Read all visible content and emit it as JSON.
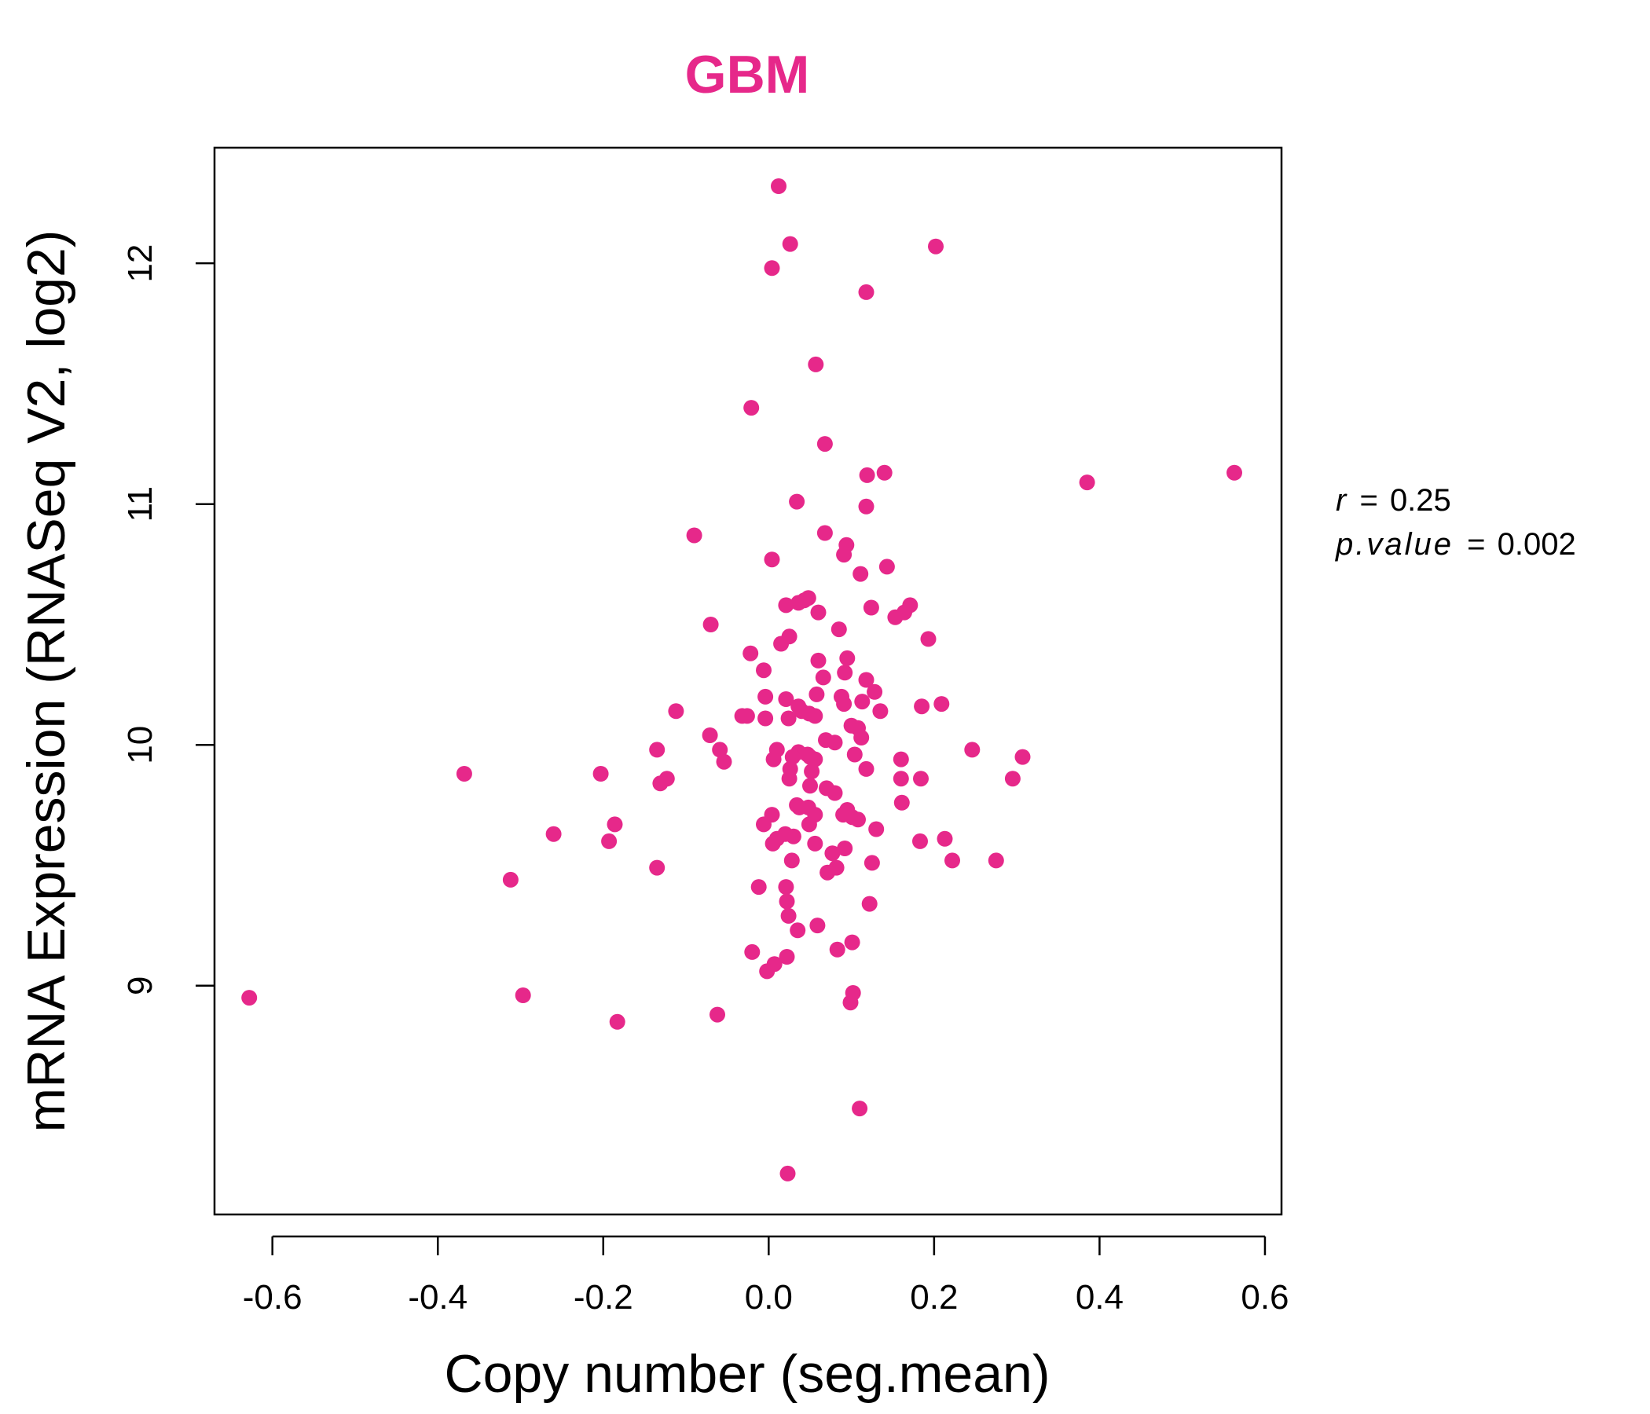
{
  "accent_color": "#E6288A",
  "stats": {
    "r_label": "r",
    "r_value": "0.25",
    "p_label": "p.value",
    "p_value": "0.002"
  },
  "chart_data": {
    "type": "scatter",
    "title": "GBM",
    "xlabel": "Copy number (seg.mean)",
    "ylabel": "mRNA Expression (RNASeq V2, log2)",
    "xlim": [
      -0.67,
      0.62
    ],
    "ylim": [
      8.05,
      12.48
    ],
    "xticks": [
      -0.6,
      -0.4,
      -0.2,
      0.0,
      0.2,
      0.4,
      0.6
    ],
    "xtick_labels": [
      "-0.6",
      "-0.4",
      "-0.2",
      "0.0",
      "0.2",
      "0.4",
      "0.6"
    ],
    "yticks": [
      9,
      10,
      11,
      12
    ],
    "ytick_labels": [
      "9",
      "10",
      "11",
      "12"
    ],
    "grid": false,
    "legend": "none",
    "point_color": "#E6288A",
    "points": [
      [
        0.012,
        12.32
      ],
      [
        0.026,
        12.08
      ],
      [
        0.004,
        11.98
      ],
      [
        0.202,
        12.07
      ],
      [
        0.118,
        11.88
      ],
      [
        0.057,
        11.58
      ],
      [
        -0.021,
        11.4
      ],
      [
        0.068,
        11.25
      ],
      [
        0.119,
        11.12
      ],
      [
        0.14,
        11.13
      ],
      [
        0.385,
        11.09
      ],
      [
        0.563,
        11.13
      ],
      [
        0.034,
        11.01
      ],
      [
        0.118,
        10.99
      ],
      [
        -0.09,
        10.87
      ],
      [
        0.068,
        10.88
      ],
      [
        0.094,
        10.83
      ],
      [
        0.091,
        10.79
      ],
      [
        0.004,
        10.77
      ],
      [
        0.111,
        10.71
      ],
      [
        0.143,
        10.74
      ],
      [
        0.048,
        10.61
      ],
      [
        0.043,
        10.6
      ],
      [
        0.036,
        10.59
      ],
      [
        0.021,
        10.58
      ],
      [
        0.06,
        10.55
      ],
      [
        0.124,
        10.57
      ],
      [
        0.171,
        10.58
      ],
      [
        0.164,
        10.55
      ],
      [
        0.153,
        10.53
      ],
      [
        -0.07,
        10.5
      ],
      [
        0.085,
        10.48
      ],
      [
        0.025,
        10.45
      ],
      [
        0.015,
        10.42
      ],
      [
        0.193,
        10.44
      ],
      [
        -0.022,
        10.38
      ],
      [
        0.095,
        10.36
      ],
      [
        0.06,
        10.35
      ],
      [
        -0.006,
        10.31
      ],
      [
        0.092,
        10.3
      ],
      [
        0.066,
        10.28
      ],
      [
        0.118,
        10.27
      ],
      [
        0.128,
        10.22
      ],
      [
        0.088,
        10.2
      ],
      [
        0.058,
        10.21
      ],
      [
        0.021,
        10.19
      ],
      [
        0.113,
        10.18
      ],
      [
        -0.004,
        10.2
      ],
      [
        0.036,
        10.16
      ],
      [
        0.091,
        10.17
      ],
      [
        0.185,
        10.16
      ],
      [
        0.209,
        10.17
      ],
      [
        0.04,
        10.14
      ],
      [
        0.049,
        10.13
      ],
      [
        0.056,
        10.12
      ],
      [
        0.024,
        10.11
      ],
      [
        0.135,
        10.14
      ],
      [
        -0.112,
        10.14
      ],
      [
        -0.026,
        10.12
      ],
      [
        -0.032,
        10.12
      ],
      [
        -0.004,
        10.11
      ],
      [
        0.1,
        10.08
      ],
      [
        0.108,
        10.07
      ],
      [
        -0.071,
        10.04
      ],
      [
        0.112,
        10.03
      ],
      [
        0.069,
        10.02
      ],
      [
        0.08,
        10.01
      ],
      [
        -0.059,
        9.98
      ],
      [
        0.01,
        9.98
      ],
      [
        0.246,
        9.98
      ],
      [
        -0.135,
        9.98
      ],
      [
        0.104,
        9.96
      ],
      [
        0.036,
        9.97
      ],
      [
        0.029,
        9.95
      ],
      [
        0.05,
        9.95
      ],
      [
        0.047,
        9.96
      ],
      [
        0.056,
        9.94
      ],
      [
        0.006,
        9.94
      ],
      [
        0.16,
        9.94
      ],
      [
        0.307,
        9.95
      ],
      [
        -0.054,
        9.93
      ],
      [
        0.026,
        9.9
      ],
      [
        0.118,
        9.9
      ],
      [
        0.052,
        9.89
      ],
      [
        0.025,
        9.86
      ],
      [
        -0.368,
        9.88
      ],
      [
        -0.203,
        9.88
      ],
      [
        0.184,
        9.86
      ],
      [
        0.16,
        9.86
      ],
      [
        0.295,
        9.86
      ],
      [
        -0.123,
        9.86
      ],
      [
        -0.131,
        9.84
      ],
      [
        0.05,
        9.83
      ],
      [
        0.07,
        9.82
      ],
      [
        0.08,
        9.8
      ],
      [
        0.161,
        9.76
      ],
      [
        0.034,
        9.75
      ],
      [
        0.048,
        9.74
      ],
      [
        0.037,
        9.74
      ],
      [
        0.095,
        9.73
      ],
      [
        0.09,
        9.71
      ],
      [
        0.056,
        9.71
      ],
      [
        0.101,
        9.7
      ],
      [
        0.108,
        9.69
      ],
      [
        0.004,
        9.71
      ],
      [
        -0.006,
        9.67
      ],
      [
        0.049,
        9.67
      ],
      [
        -0.186,
        9.67
      ],
      [
        0.13,
        9.65
      ],
      [
        0.02,
        9.63
      ],
      [
        0.03,
        9.62
      ],
      [
        -0.26,
        9.63
      ],
      [
        0.01,
        9.61
      ],
      [
        0.005,
        9.59
      ],
      [
        0.213,
        9.61
      ],
      [
        -0.193,
        9.6
      ],
      [
        0.183,
        9.6
      ],
      [
        0.056,
        9.59
      ],
      [
        0.092,
        9.57
      ],
      [
        0.077,
        9.55
      ],
      [
        0.028,
        9.52
      ],
      [
        0.125,
        9.51
      ],
      [
        0.222,
        9.52
      ],
      [
        0.275,
        9.52
      ],
      [
        -0.135,
        9.49
      ],
      [
        0.082,
        9.49
      ],
      [
        0.071,
        9.47
      ],
      [
        -0.312,
        9.44
      ],
      [
        0.021,
        9.41
      ],
      [
        -0.012,
        9.41
      ],
      [
        0.022,
        9.35
      ],
      [
        0.122,
        9.34
      ],
      [
        0.024,
        9.29
      ],
      [
        0.059,
        9.25
      ],
      [
        0.035,
        9.23
      ],
      [
        0.101,
        9.18
      ],
      [
        0.083,
        9.15
      ],
      [
        -0.02,
        9.14
      ],
      [
        0.022,
        9.12
      ],
      [
        0.007,
        9.09
      ],
      [
        -0.002,
        9.06
      ],
      [
        0.102,
        8.97
      ],
      [
        0.099,
        8.93
      ],
      [
        -0.628,
        8.95
      ],
      [
        -0.297,
        8.96
      ],
      [
        -0.062,
        8.88
      ],
      [
        -0.183,
        8.85
      ],
      [
        0.11,
        8.49
      ],
      [
        0.023,
        8.22
      ]
    ]
  }
}
